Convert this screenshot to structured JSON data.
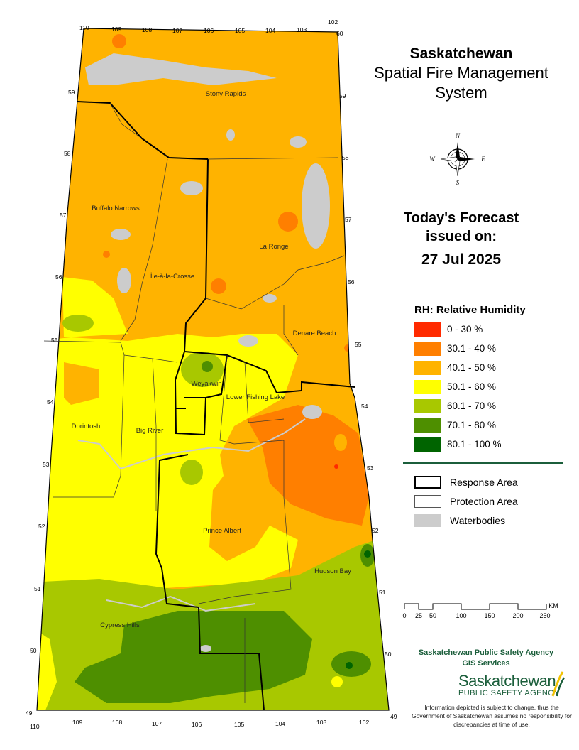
{
  "header": {
    "title": "Saskatchewan",
    "subtitle_line1": "Spatial Fire Management",
    "subtitle_line2": "System"
  },
  "forecast": {
    "line1": "Today's Forecast",
    "line2": "issued on:",
    "date": "27 Jul 2025"
  },
  "compass": {
    "north": "N",
    "south": "S",
    "east": "E",
    "west": "W"
  },
  "legend": {
    "title": "RH: Relative Humidity",
    "classes": [
      {
        "label": "0 - 30 %",
        "color": "#ff2a00"
      },
      {
        "label": "30.1 - 40 %",
        "color": "#ff7f00"
      },
      {
        "label": "40.1 - 50 %",
        "color": "#ffb300"
      },
      {
        "label": "50.1 - 60 %",
        "color": "#ffff00"
      },
      {
        "label": "60.1 - 70 %",
        "color": "#a8c800"
      },
      {
        "label": "70.1 - 80 %",
        "color": "#4e8f00"
      },
      {
        "label": "80.1 - 100 %",
        "color": "#006400"
      }
    ],
    "layers": [
      {
        "label": "Response Area"
      },
      {
        "label": "Protection Area"
      },
      {
        "label": "Waterbodies",
        "color": "#cccccc"
      }
    ]
  },
  "scale": {
    "unit": "KM",
    "ticks": [
      "0",
      "25",
      "50",
      "100",
      "150",
      "200",
      "250"
    ]
  },
  "places": [
    "Stony Rapids",
    "Buffalo Narrows",
    "La Ronge",
    "Île-à-la-Crosse",
    "Denare Beach",
    "Weyakwin",
    "Lower Fishing Lake",
    "Dorintosh",
    "Big River",
    "Prince Albert",
    "Hudson Bay",
    "Cypress Hills"
  ],
  "graticule": {
    "top_longitudes": [
      "110",
      "109",
      "108",
      "107",
      "106",
      "105",
      "104",
      "103",
      "102"
    ],
    "bottom_longitudes": [
      "110",
      "109",
      "108",
      "107",
      "106",
      "105",
      "104",
      "103",
      "102"
    ],
    "latitudes": [
      "60",
      "59",
      "58",
      "57",
      "56",
      "55",
      "54",
      "53",
      "52",
      "51",
      "50",
      "49"
    ]
  },
  "footer": {
    "agency_line1": "Saskatchewan Public Safety Agency",
    "agency_line2": "GIS  Services",
    "logo_word": "Saskatchewan",
    "logo_sub": "PUBLIC SAFETY AGENCY",
    "disclaimer": "Information depicted is subject to change, thus the Government of Saskatchewan assumes no responsibility for discrepancies at time of use."
  }
}
